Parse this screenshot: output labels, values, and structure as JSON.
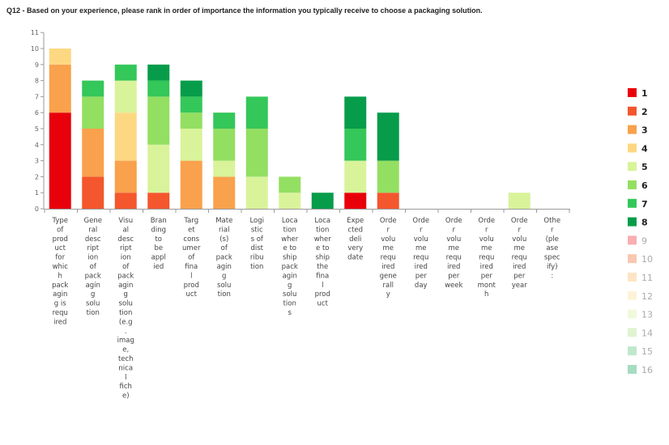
{
  "chart_data": {
    "type": "bar",
    "stacked": true,
    "title": "Q12 - Based on your experience, please rank in order of importance the information you typically receive to choose a packaging solution.",
    "xlabel": "",
    "ylabel": "",
    "ylim": [
      0,
      11
    ],
    "yticks": [
      "0",
      "1",
      "2",
      "3",
      "4",
      "5",
      "6",
      "7",
      "8",
      "9",
      "10",
      "11"
    ],
    "grid": false,
    "legend_position": "right",
    "categories": [
      [
        "Type",
        "of",
        "prod",
        "uct",
        "for",
        "whic",
        "h",
        "pack",
        "agin",
        "g is",
        "requ",
        "ired"
      ],
      [
        "Gene",
        "ral",
        "desc",
        "ript",
        "ion",
        "of",
        "pack",
        "agin",
        "g",
        "solu",
        "tion"
      ],
      [
        "Visu",
        "al",
        "desc",
        "ript",
        "ion",
        "of",
        "pack",
        "agin",
        "g",
        "solu",
        "tion",
        "(e.g",
        ".",
        "imag",
        "e,",
        "tech",
        "nica",
        "l",
        "fich",
        "e)"
      ],
      [
        "Bran",
        "ding",
        "to",
        "be",
        "appl",
        "ied"
      ],
      [
        "Targ",
        "et",
        "cons",
        "umer",
        "of",
        "fina",
        "l",
        "prod",
        "uct"
      ],
      [
        "Mate",
        "rial",
        "(s)",
        "of",
        "pack",
        "agin",
        "g",
        "solu",
        "tion"
      ],
      [
        "Logi",
        "stic",
        "s of",
        "dist",
        "ribu",
        "tion"
      ],
      [
        "Loca",
        "tion",
        "wher",
        "e to",
        "ship",
        "pack",
        "agin",
        "g",
        "solu",
        "tion",
        "s"
      ],
      [
        "Loca",
        "tion",
        "wher",
        "e to",
        "ship",
        "the",
        "fina",
        "l",
        "prod",
        "uct"
      ],
      [
        "Expe",
        "cted",
        "deli",
        "very",
        "date"
      ],
      [
        "Orde",
        "r",
        "volu",
        "me",
        "requ",
        "ired",
        "gene",
        "rall",
        "y"
      ],
      [
        "Orde",
        "r",
        "volu",
        "me",
        "requ",
        "ired",
        "per",
        "day"
      ],
      [
        "Orde",
        "r",
        "volu",
        "me",
        "requ",
        "ired",
        "per",
        "week"
      ],
      [
        "Orde",
        "r",
        "volu",
        "me",
        "requ",
        "ired",
        "per",
        "mont",
        "h"
      ],
      [
        "Orde",
        "r",
        "volu",
        "me",
        "requ",
        "ired",
        "per",
        "year"
      ],
      [
        "Othe",
        "r",
        "(ple",
        "ase",
        "spec",
        "ify)",
        ":"
      ]
    ],
    "series": [
      {
        "name": "1",
        "color": "#e8000b",
        "values": [
          6,
          0,
          0,
          0,
          0,
          0,
          0,
          0,
          0,
          1,
          0,
          0,
          0,
          0,
          0,
          0
        ]
      },
      {
        "name": "2",
        "color": "#f4562d",
        "values": [
          0,
          2,
          1,
          1,
          0,
          0,
          0,
          0,
          0,
          0,
          1,
          0,
          0,
          0,
          0,
          0
        ]
      },
      {
        "name": "3",
        "color": "#f9a14c",
        "values": [
          3,
          3,
          2,
          0,
          3,
          2,
          0,
          0,
          0,
          0,
          0,
          0,
          0,
          0,
          0,
          0
        ]
      },
      {
        "name": "4",
        "color": "#fdd882",
        "values": [
          1,
          0,
          3,
          0,
          0,
          0,
          0,
          0,
          0,
          0,
          0,
          0,
          0,
          0,
          0,
          0
        ]
      },
      {
        "name": "5",
        "color": "#d9f39a",
        "values": [
          0,
          0,
          2,
          3,
          2,
          1,
          2,
          1,
          0,
          2,
          0,
          0,
          0,
          0,
          1,
          0
        ]
      },
      {
        "name": "6",
        "color": "#93df62",
        "values": [
          0,
          2,
          0,
          3,
          1,
          2,
          3,
          1,
          0,
          0,
          2,
          0,
          0,
          0,
          0,
          0
        ]
      },
      {
        "name": "7",
        "color": "#34c759",
        "values": [
          0,
          1,
          1,
          1,
          1,
          1,
          2,
          0,
          0,
          2,
          0,
          0,
          0,
          0,
          0,
          0
        ]
      },
      {
        "name": "8",
        "color": "#079c4a",
        "values": [
          0,
          0,
          0,
          1,
          1,
          0,
          0,
          0,
          1,
          2,
          3,
          0,
          0,
          0,
          0,
          0
        ]
      },
      {
        "name": "9",
        "color": "#f8aeb2",
        "values": [
          0,
          0,
          0,
          0,
          0,
          0,
          0,
          0,
          0,
          0,
          0,
          0,
          0,
          0,
          0,
          0
        ]
      },
      {
        "name": "10",
        "color": "#f9c8b2",
        "values": [
          0,
          0,
          0,
          0,
          0,
          0,
          0,
          0,
          0,
          0,
          0,
          0,
          0,
          0,
          0,
          0
        ]
      },
      {
        "name": "11",
        "color": "#fde4c4",
        "values": [
          0,
          0,
          0,
          0,
          0,
          0,
          0,
          0,
          0,
          0,
          0,
          0,
          0,
          0,
          0,
          0
        ]
      },
      {
        "name": "12",
        "color": "#fdf3d6",
        "values": [
          0,
          0,
          0,
          0,
          0,
          0,
          0,
          0,
          0,
          0,
          0,
          0,
          0,
          0,
          0,
          0
        ]
      },
      {
        "name": "13",
        "color": "#f1f9dc",
        "values": [
          0,
          0,
          0,
          0,
          0,
          0,
          0,
          0,
          0,
          0,
          0,
          0,
          0,
          0,
          0,
          0
        ]
      },
      {
        "name": "14",
        "color": "#dff3d1",
        "values": [
          0,
          0,
          0,
          0,
          0,
          0,
          0,
          0,
          0,
          0,
          0,
          0,
          0,
          0,
          0,
          0
        ]
      },
      {
        "name": "15",
        "color": "#bfe8cc",
        "values": [
          0,
          0,
          0,
          0,
          0,
          0,
          0,
          0,
          0,
          0,
          0,
          0,
          0,
          0,
          0,
          0
        ]
      },
      {
        "name": "16",
        "color": "#a6dcc0",
        "values": [
          0,
          0,
          0,
          0,
          0,
          0,
          0,
          0,
          0,
          0,
          0,
          0,
          0,
          0,
          0,
          0
        ]
      }
    ]
  }
}
